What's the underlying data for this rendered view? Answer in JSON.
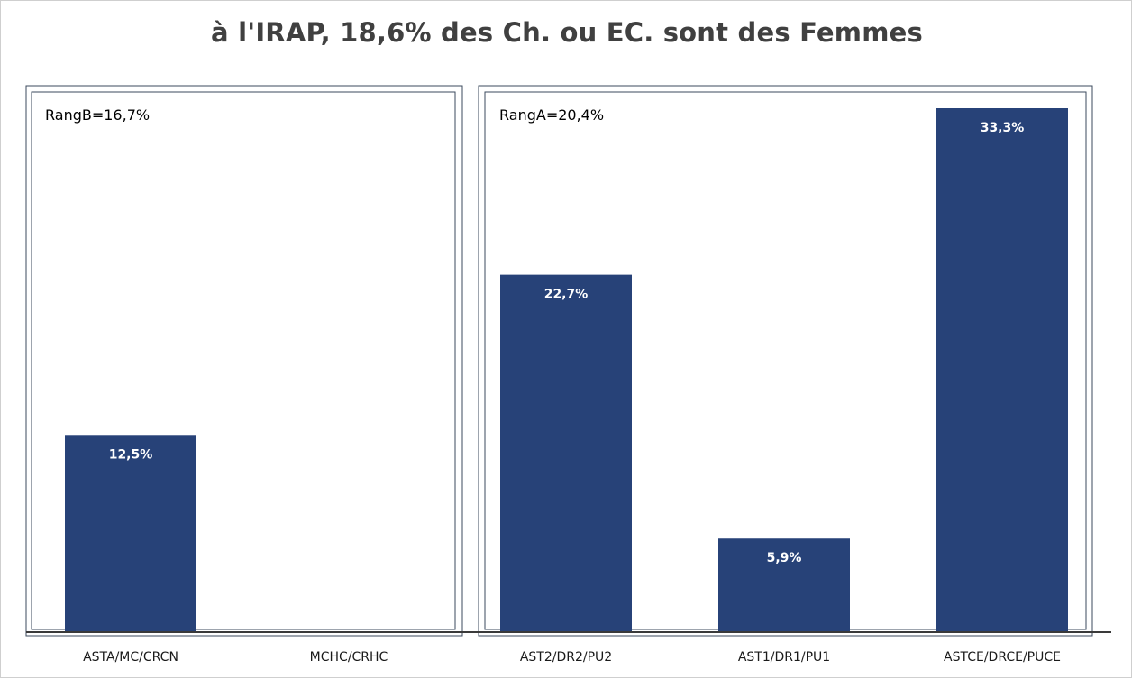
{
  "chart_data": {
    "type": "bar",
    "title": "à l'IRAP, 18,6% des Ch. ou EC. sont des Femmes",
    "xlabel": "",
    "ylabel": "",
    "ylim": [
      0,
      35
    ],
    "grid": false,
    "legend": "none",
    "bar_color": "#274278",
    "groups": [
      {
        "label": "RangB=16,7%",
        "categories": [
          "ASTA/MC/CRCN",
          "MCHC/CRHC"
        ],
        "values": [
          12.5,
          0
        ],
        "value_labels": [
          "12,5%",
          ""
        ]
      },
      {
        "label": "RangA=20,4%",
        "categories": [
          "AST2/DR2/PU2",
          "AST1/DR1/PU1",
          "ASTCE/DRCE/PUCE"
        ],
        "values": [
          22.7,
          5.9,
          33.3
        ],
        "value_labels": [
          "22,7%",
          "5,9%",
          "33,3%"
        ]
      }
    ]
  }
}
